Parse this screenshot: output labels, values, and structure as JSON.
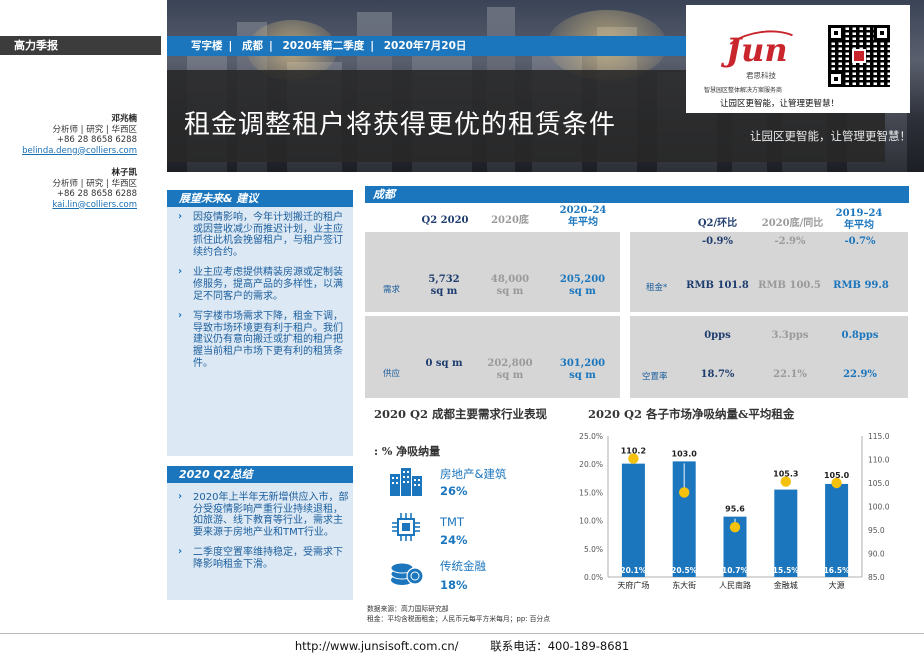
{
  "brand": "高力季报",
  "contacts": [
    {
      "name": "邓兆楠",
      "role": "分析师 | 研究 | 华西区",
      "phone": "+86 28 8658 6288",
      "email": "belinda.deng@colliers.com"
    },
    {
      "name": "林子凯",
      "role": "分析师 | 研究 | 华西区",
      "phone": "+86 28 8658 6288",
      "email": "kai.lin@colliers.com"
    }
  ],
  "tags": [
    "写字楼",
    "成都",
    "2020年第二季度",
    "2020年7月20日"
  ],
  "title": "租金调整租户将获得更优的租赁条件",
  "title_overflow": "让园区更智能，让管理更智慧！",
  "logo": {
    "text": "Jun",
    "cn": "君思科技",
    "sub": "智慧园区整体解决方案服务商",
    "slogan": "让园区更智能，让管理更智慧！",
    "color": "#c9252c"
  },
  "outlook": {
    "heading": "展望未来& 建议",
    "bullets": [
      "因疫情影响，今年计划搬迁的租户或因营收减少而推迟计划，业主应抓住此机会挽留租户，与租户签订续约合约。",
      "业主应考虑提供精装房源或定制装修服务，提高产品的多样性，以满足不同客户的需求。",
      "写字楼市场需求下降，租金下调，导致市场环境更有利于租户。我们建议仍有意向搬迁或扩租的租户把握当前租户市场下更有利的租赁条件。"
    ]
  },
  "summary": {
    "heading": "2020  Q2总结",
    "bullets": [
      "2020年上半年无新增供应入市，部分受疫情影响严重行业持续退租，如旅游、线下教育等行业，需求主要来源于房地产业和TMT行业。",
      "二季度空置率维持稳定，受需求下降影响租金下滑。"
    ]
  },
  "city": {
    "heading": "成都",
    "left_headers": [
      "Q2 2020",
      "2020底",
      "2020–24\n年平均"
    ],
    "right_headers": [
      "Q2/环比",
      "2020底/同比",
      "2019–24\n年平均"
    ],
    "demand": {
      "label": "需求",
      "values": [
        "5,732\nsq m",
        "48,000\nsq m",
        "205,200\nsq m"
      ]
    },
    "supply": {
      "label": "供应",
      "values": [
        "0 sq m",
        "202,800\nsq m",
        "301,200\nsq m"
      ]
    },
    "rent": {
      "label": "租金*",
      "changes": [
        "-0.9%",
        "-2.9%",
        "-0.7%"
      ],
      "values": [
        "RMB 101.8",
        "RMB 100.5",
        "RMB 99.8"
      ]
    },
    "vacancy": {
      "label": "空置率",
      "changes": [
        "0pps",
        "3.3pps",
        "0.8pps"
      ],
      "values": [
        "18.7%",
        "22.1%",
        "22.9%"
      ]
    }
  },
  "industries": {
    "title": "2020 Q2 成都主要需求行业表现",
    "subtitle": ": % 净吸纳量",
    "items": [
      {
        "name": "房地产&建筑",
        "value": "26%",
        "icon": "building-icon"
      },
      {
        "name": "TMT",
        "value": "24%",
        "icon": "chip-icon"
      },
      {
        "name": "传统金融",
        "value": "18%",
        "icon": "coins-icon"
      }
    ]
  },
  "notes": [
    "数据来源：高力国际研究部",
    "租金：平均含税面租金；人民币元每平方米每月；pp: 百分点"
  ],
  "chart_title": "2020 Q2 各子市场净吸纳量&平均租金",
  "chart_data": {
    "type": "bar",
    "categories": [
      "天府广场",
      "东大街",
      "人民南路",
      "金融城",
      "大源"
    ],
    "series": [
      {
        "values": [
          20.1,
          20.5,
          10.7,
          15.5,
          16.5
        ],
        "axis": "left",
        "color": "#1b76bd"
      },
      {
        "values": [
          110.2,
          103.0,
          95.6,
          105.3,
          105.0
        ],
        "axis": "right",
        "color": "#f4c20d"
      }
    ],
    "bar_labels": [
      "20.1%",
      "20.5%",
      "10.7%",
      "15.5%",
      "16.5%"
    ],
    "rent_labels": [
      "110.2",
      "103.0",
      "95.6",
      "105.3",
      "105.0"
    ],
    "y_left": {
      "range": [
        0,
        25
      ],
      "ticks": [
        "0.0%",
        "5.0%",
        "10.0%",
        "15.0%",
        "20.0%",
        "25.0%"
      ]
    },
    "y_right": {
      "range": [
        85,
        115
      ],
      "ticks": [
        "85.0",
        "90.0",
        "95.0",
        "100.0",
        "105.0",
        "110.0",
        "115.0"
      ]
    }
  },
  "footer": {
    "url": "http://www.junsisoft.com.cn/",
    "phone": "联系电话：400-189-8681"
  }
}
